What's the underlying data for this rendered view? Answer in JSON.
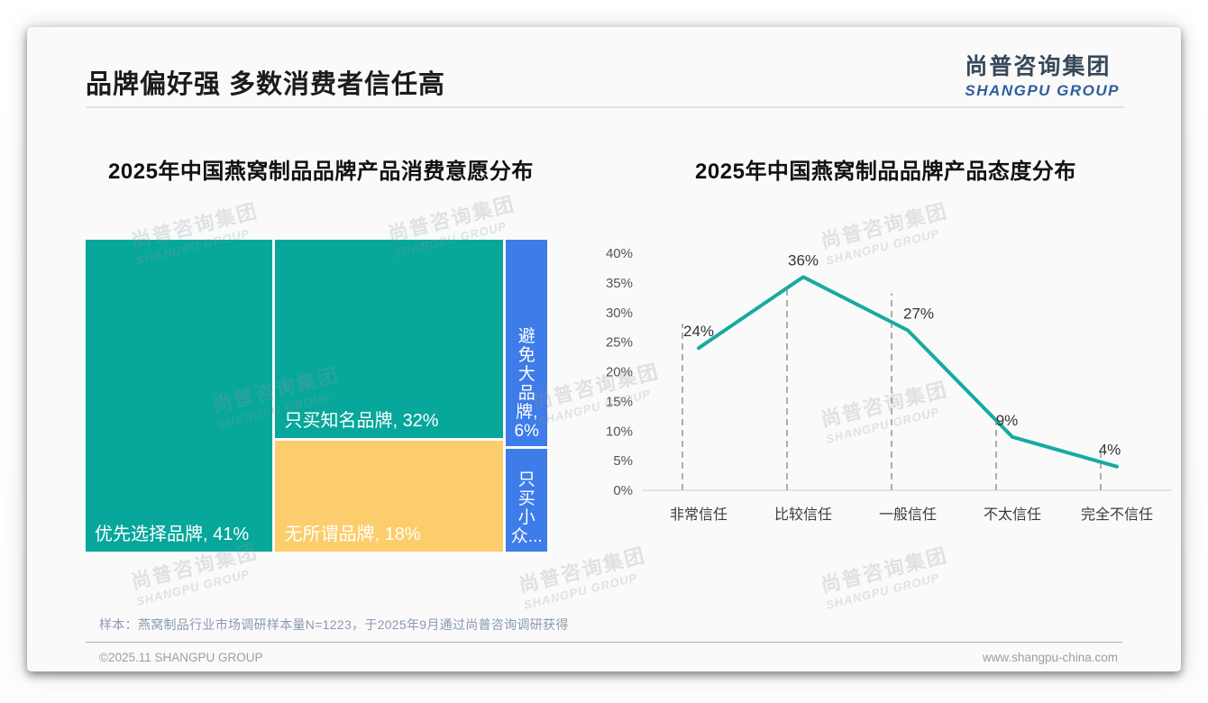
{
  "page": {
    "title": "品牌偏好强 多数消费者信任高",
    "logo": {
      "cn": "尚普咨询集团",
      "en": "SHANGPU GROUP"
    },
    "watermark": {
      "cn": "尚普咨询集团",
      "en": "SHANGPU GROUP"
    },
    "footer": {
      "note": "样本：燕窝制品行业市场调研样本量N=1223，于2025年9月通过尚普咨询调研获得",
      "copyright": "©2025.11 SHANGPU GROUP",
      "website": "www.shangpu-china.com"
    }
  },
  "chart_data": [
    {
      "type": "treemap",
      "title": "2025年中国燕窝制品品牌产品消费意愿分布",
      "items": [
        {
          "label": "优先选择品牌",
          "value": 41,
          "display": "优先选择品牌, 41%",
          "color": "#07A79B",
          "orientation": "horizontal"
        },
        {
          "label": "只买知名品牌",
          "value": 32,
          "display": "只买知名品牌, 32%",
          "color": "#07A79B",
          "orientation": "horizontal"
        },
        {
          "label": "无所谓品牌",
          "value": 18,
          "display": "无所谓品牌, 18%",
          "color": "#FBCD6C",
          "orientation": "horizontal"
        },
        {
          "label": "避免大品牌",
          "value": 6,
          "display_lines": [
            "避",
            "免",
            "大",
            "品",
            "牌,",
            "6%"
          ],
          "color": "#3D7CE9",
          "orientation": "vertical"
        },
        {
          "label": "只买小众品牌",
          "value": 3,
          "display_lines": [
            "只",
            "买",
            "小",
            "众..."
          ],
          "color": "#3D7CE9",
          "orientation": "vertical"
        }
      ],
      "columns": [
        [
          0
        ],
        [
          1,
          2
        ],
        [
          3,
          4
        ]
      ]
    },
    {
      "type": "line",
      "title": "2025年中国燕窝制品品牌产品态度分布",
      "categories": [
        "非常信任",
        "比较信任",
        "一般信任",
        "不太信任",
        "完全不信任"
      ],
      "values": [
        24,
        36,
        27,
        9,
        4
      ],
      "labels": [
        "24%",
        "36%",
        "27%",
        "9%",
        "4%"
      ],
      "ylim": [
        0,
        40
      ],
      "yticks": [
        "0%",
        "5%",
        "10%",
        "15%",
        "20%",
        "25%",
        "30%",
        "35%",
        "40%"
      ],
      "line_color": "#17ABA0",
      "grid": "dashed-vertical-droplines",
      "legend": "none",
      "dash_top_offsets": [
        -27,
        14,
        -41,
        -19,
        -20
      ],
      "label_x_offsets": [
        0,
        0,
        12,
        -6,
        -8
      ]
    }
  ]
}
